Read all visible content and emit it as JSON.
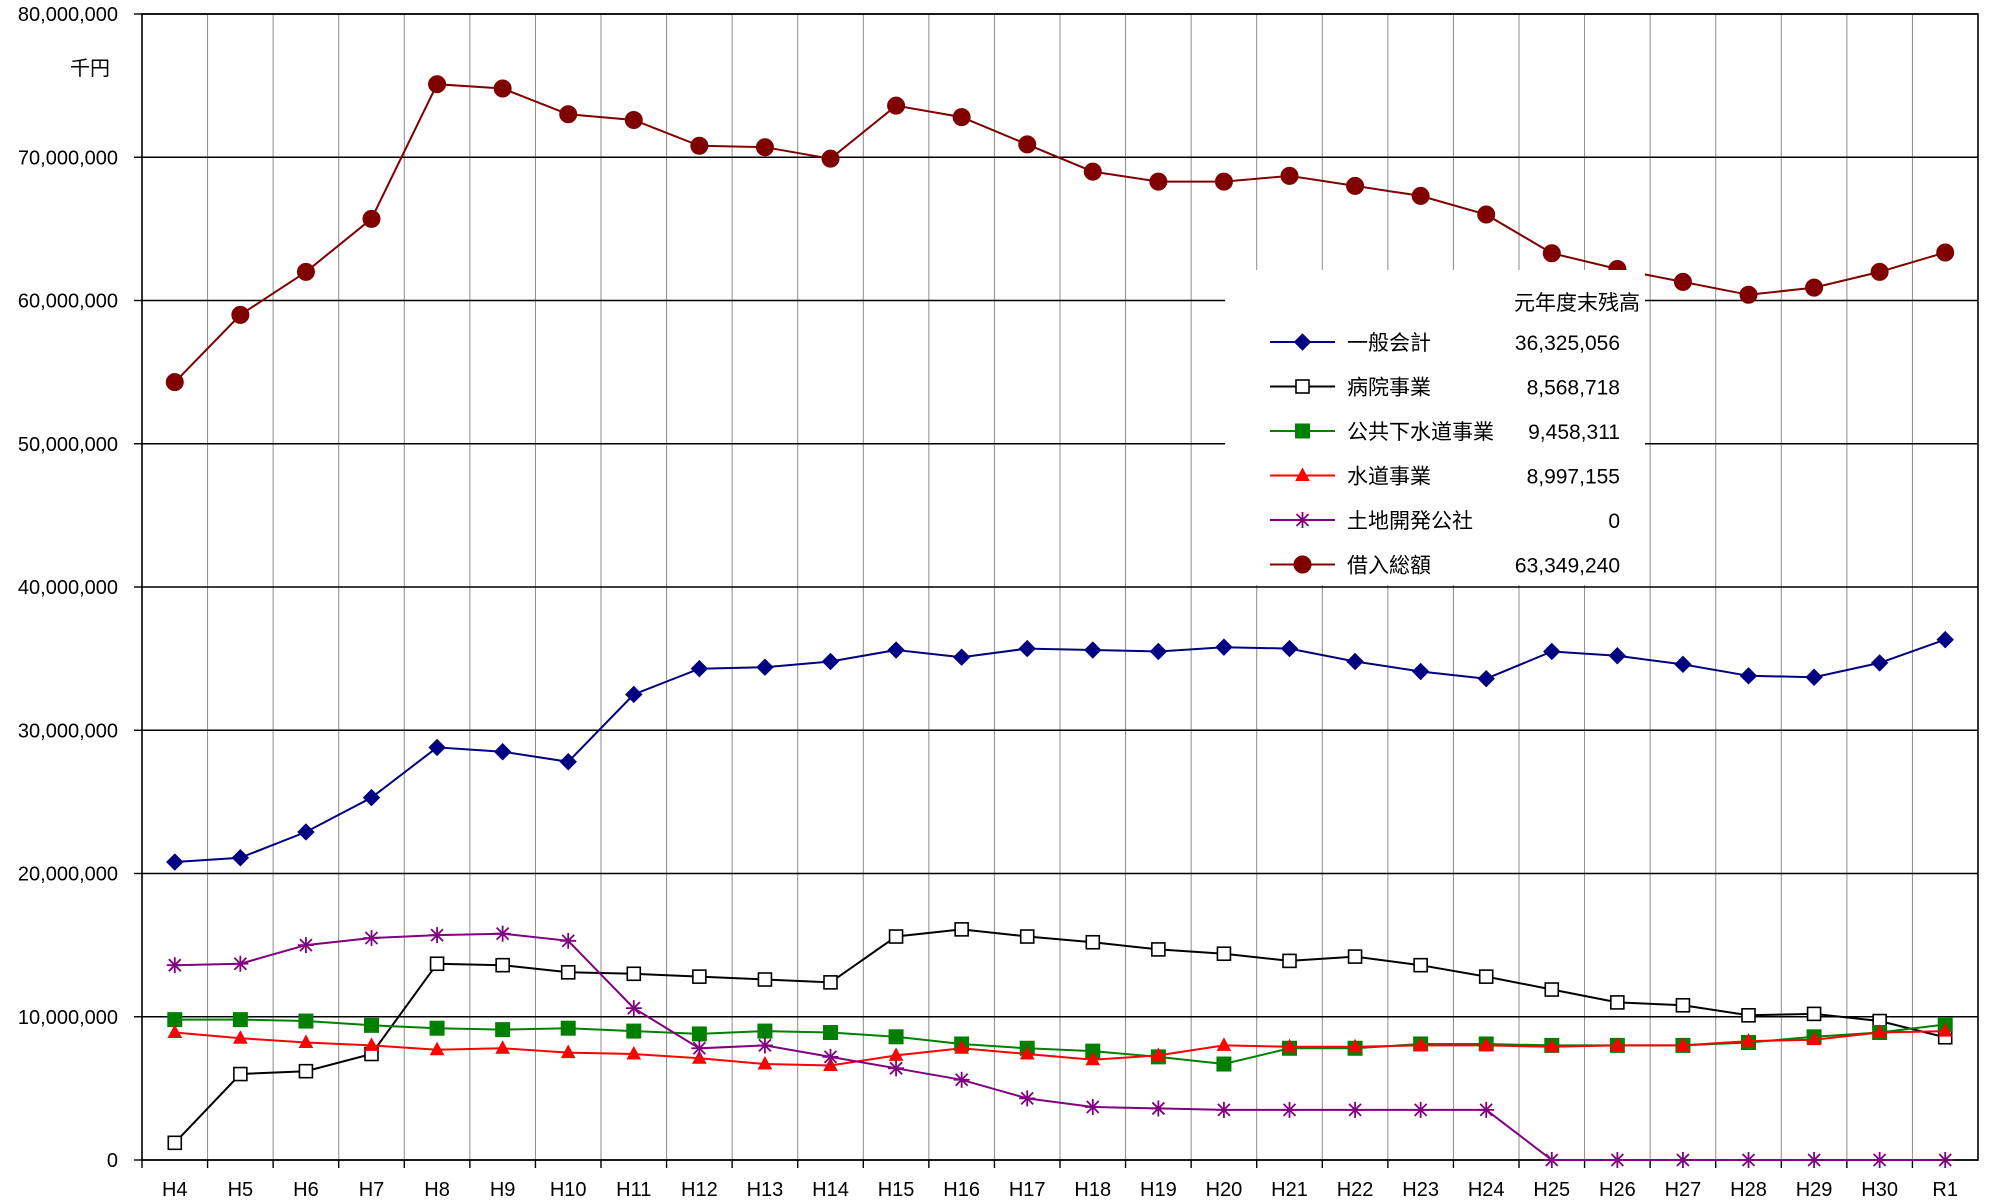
{
  "chart_data": {
    "type": "line",
    "title": "",
    "xlabel": "",
    "ylabel": "",
    "unit_label": "千円",
    "categories": [
      "H4",
      "H5",
      "H6",
      "H7",
      "H8",
      "H9",
      "H10",
      "H11",
      "H12",
      "H13",
      "H14",
      "H15",
      "H16",
      "H17",
      "H18",
      "H19",
      "H20",
      "H21",
      "H22",
      "H23",
      "H24",
      "H25",
      "H26",
      "H27",
      "H28",
      "H29",
      "H30",
      "R1"
    ],
    "ylim": [
      0,
      80000000
    ],
    "yticks": [
      0,
      10000000,
      20000000,
      30000000,
      40000000,
      50000000,
      60000000,
      70000000,
      80000000
    ],
    "ytick_labels": [
      "0",
      "10,000,000",
      "20,000,000",
      "30,000,000",
      "40,000,000",
      "50,000,000",
      "60,000,000",
      "70,000,000",
      "80,000,000"
    ],
    "grid": true,
    "legend_position": "upper-right",
    "legend_header": "元年度末残高",
    "series": [
      {
        "name": "一般会計",
        "legend_value": "36,325,056",
        "color": "#000080",
        "marker": "diamond",
        "values": [
          20800000,
          21100000,
          22900000,
          25300000,
          28800000,
          28500000,
          27800000,
          32500000,
          34300000,
          34400000,
          34800000,
          35600000,
          35100000,
          35700000,
          35600000,
          35500000,
          35800000,
          35700000,
          34800000,
          34100000,
          33600000,
          35500000,
          35200000,
          34600000,
          33800000,
          33700000,
          34700000,
          36325056
        ]
      },
      {
        "name": "病院事業",
        "legend_value": "8,568,718",
        "color": "#000000",
        "marker": "square-open",
        "values": [
          1200000,
          6000000,
          6200000,
          7400000,
          13700000,
          13600000,
          13100000,
          13000000,
          12800000,
          12600000,
          12400000,
          15600000,
          16100000,
          15600000,
          15200000,
          14700000,
          14400000,
          13900000,
          14200000,
          13600000,
          12800000,
          11900000,
          11000000,
          10800000,
          10100000,
          10200000,
          9700000,
          8568718
        ]
      },
      {
        "name": "公共下水道事業",
        "legend_value": "9,458,311",
        "color": "#008000",
        "marker": "square-filled",
        "values": [
          9800000,
          9800000,
          9700000,
          9400000,
          9200000,
          9100000,
          9200000,
          9000000,
          8800000,
          9000000,
          8900000,
          8600000,
          8100000,
          7800000,
          7600000,
          7200000,
          6700000,
          7800000,
          7800000,
          8100000,
          8100000,
          8000000,
          8000000,
          8000000,
          8200000,
          8600000,
          8900000,
          9458311
        ]
      },
      {
        "name": "水道事業",
        "legend_value": "8,997,155",
        "color": "#ff0000",
        "marker": "triangle",
        "values": [
          8900000,
          8500000,
          8200000,
          8000000,
          7700000,
          7800000,
          7500000,
          7400000,
          7100000,
          6700000,
          6600000,
          7300000,
          7800000,
          7400000,
          7000000,
          7300000,
          8000000,
          7900000,
          7900000,
          8000000,
          8000000,
          7900000,
          8000000,
          8000000,
          8300000,
          8400000,
          8900000,
          8997155
        ]
      },
      {
        "name": "土地開発公社",
        "legend_value": "0",
        "color": "#800080",
        "marker": "star",
        "values": [
          13600000,
          13700000,
          15000000,
          15500000,
          15700000,
          15800000,
          15300000,
          10600000,
          7800000,
          8000000,
          7200000,
          6400000,
          5600000,
          4300000,
          3700000,
          3600000,
          3500000,
          3500000,
          3500000,
          3500000,
          3500000,
          0,
          0,
          0,
          0,
          0,
          0,
          0
        ]
      },
      {
        "name": "借入総額",
        "legend_value": "63,349,240",
        "color": "#800000",
        "marker": "circle",
        "values": [
          54300000,
          59000000,
          62000000,
          65700000,
          75100000,
          74800000,
          73000000,
          72600000,
          70800000,
          70700000,
          69900000,
          73600000,
          72800000,
          70900000,
          69000000,
          68300000,
          68300000,
          68700000,
          68000000,
          67300000,
          66000000,
          63300000,
          62200000,
          61300000,
          60400000,
          60900000,
          62000000,
          63349240
        ]
      }
    ]
  }
}
